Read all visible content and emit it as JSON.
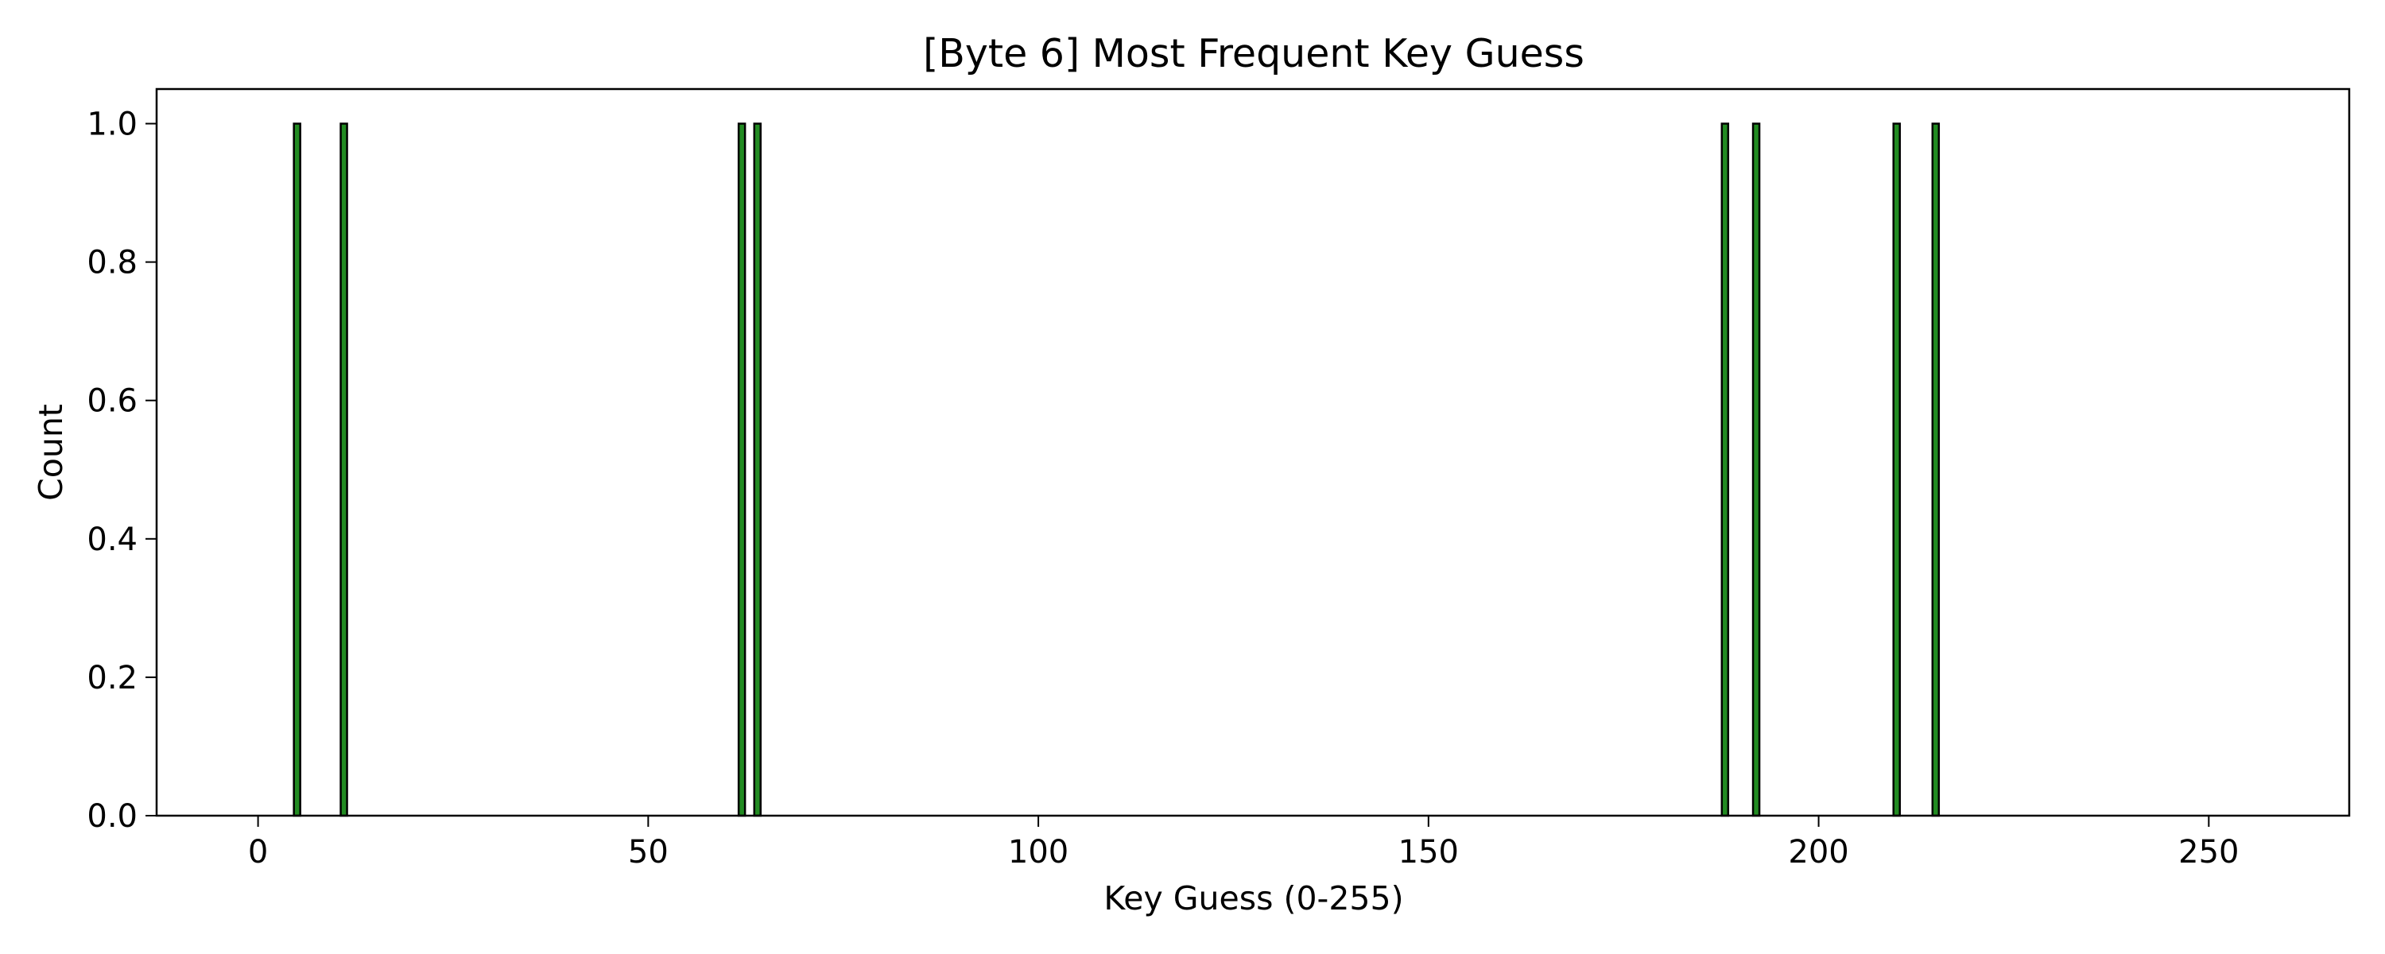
{
  "chart_data": {
    "type": "bar",
    "title": "[Byte 6] Most Frequent Key Guess",
    "xlabel": "Key Guess (0-255)",
    "ylabel": "Count",
    "x_range": [
      0,
      255
    ],
    "xlim": [
      -13,
      268
    ],
    "ylim": [
      0,
      1.05
    ],
    "x_ticks": [
      0,
      50,
      100,
      150,
      200,
      250
    ],
    "y_ticks": [
      0.0,
      0.2,
      0.4,
      0.6,
      0.8,
      1.0
    ],
    "x_tick_labels": [
      "0",
      "50",
      "100",
      "150",
      "200",
      "250"
    ],
    "y_tick_labels": [
      "0.0",
      "0.2",
      "0.4",
      "0.6",
      "0.8",
      "1.0"
    ],
    "bars": [
      {
        "x": 5,
        "value": 1
      },
      {
        "x": 11,
        "value": 1
      },
      {
        "x": 62,
        "value": 1
      },
      {
        "x": 64,
        "value": 1
      },
      {
        "x": 188,
        "value": 1
      },
      {
        "x": 192,
        "value": 1
      },
      {
        "x": 210,
        "value": 1
      },
      {
        "x": 215,
        "value": 1
      }
    ],
    "other_values": 0,
    "bar_color": "#228b22",
    "edge_color": "#000000",
    "grid": false,
    "legend": "none"
  }
}
